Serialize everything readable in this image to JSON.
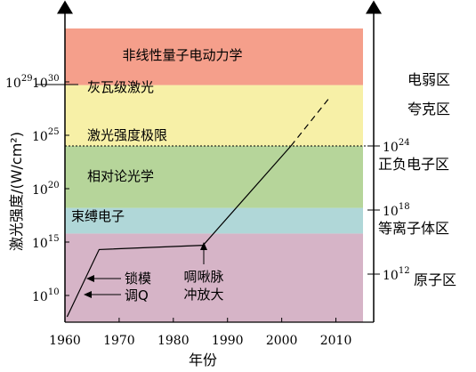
{
  "chart_data": {
    "type": "line",
    "xlabel": "年份",
    "ylabel": "激光强度/(W/cm²)",
    "x_ticks": [
      1960,
      1970,
      1980,
      1990,
      2000,
      2010
    ],
    "x_tick_labels": [
      "1960",
      "1970",
      "1980",
      "1990",
      "2000",
      "2010"
    ],
    "xlim": [
      1960,
      2015
    ],
    "y_scale": "log",
    "ylim_exponent": [
      7.5,
      35
    ],
    "y_ticks": [
      {
        "exp": 10,
        "label_base": "10",
        "label_exp": "10"
      },
      {
        "exp": 15,
        "label_base": "10",
        "label_exp": "15"
      },
      {
        "exp": 20,
        "label_base": "10",
        "label_exp": "20"
      },
      {
        "exp": 25,
        "label_base": "10",
        "label_exp": "25"
      },
      {
        "exp": 30,
        "label_base": "10",
        "label_exp": "30"
      }
    ],
    "y29_label": {
      "exp": 29,
      "label_base": "10",
      "label_exp": "29"
    },
    "bands": [
      {
        "label": "束缚电子",
        "from_exp": 7.5,
        "to_exp": 15.8,
        "color": "#d6b4c7"
      },
      {
        "label": "相对论光学",
        "from_exp": 15.8,
        "to_exp": 18.2,
        "color": "#b0d7d8"
      },
      {
        "label": "激光强度极限",
        "from_exp": 18.2,
        "to_exp": 24.0,
        "color": "#b6d59a"
      },
      {
        "label": "灰瓦级激光",
        "from_exp": 24.0,
        "to_exp": 29.7,
        "color": "#f7f0a7"
      },
      {
        "label": "非线性量子电动力学",
        "from_exp": 29.7,
        "to_exp": 35.0,
        "color": "#f59f8b"
      }
    ],
    "band_text": {
      "nqed": "非线性量子电动力学",
      "pw": "灰瓦级激光",
      "limit": "激光强度极限",
      "rel": "相对论光学",
      "bound": "束缚电子"
    },
    "series": [
      {
        "points": [
          [
            1960.4,
            8.0
          ],
          [
            1966.3,
            14.3
          ],
          [
            1985.5,
            14.7
          ],
          [
            2001.7,
            24.0
          ]
        ],
        "dashed_points": [
          [
            2001.7,
            24.0
          ],
          [
            2008.8,
            28.5
          ]
        ]
      }
    ],
    "dotted_line_exp": 24.0,
    "annotations": [
      {
        "line1": "锁模",
        "line2": "调Q"
      },
      {
        "line1": "啁啾脉",
        "line2": "冲放大"
      }
    ],
    "right_axis": {
      "ticks": [
        {
          "exp": 24,
          "label_base": "10",
          "label_exp": "24"
        },
        {
          "exp": 18,
          "label_base": "10",
          "label_exp": "18"
        },
        {
          "exp": 12,
          "label_base": "10",
          "label_exp": "12"
        }
      ],
      "region_labels": [
        "电弱区",
        "夸克区",
        "正负电子区",
        "等离子体区",
        "原子区"
      ]
    }
  }
}
